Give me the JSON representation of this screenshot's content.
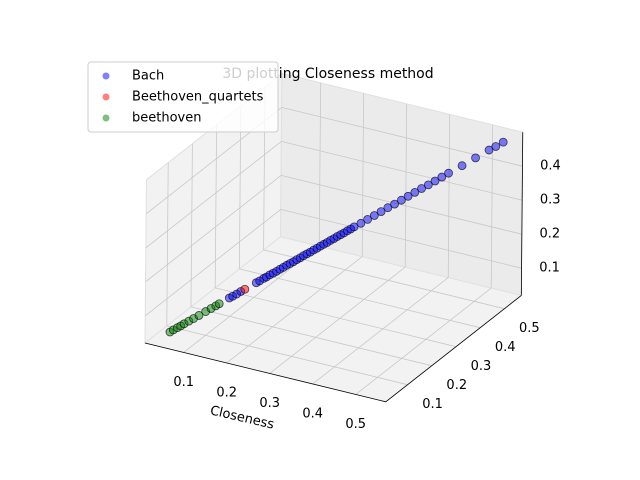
{
  "chart_data": {
    "type": "scatter3d",
    "title": "3D plotting Closeness method",
    "x_label": "Closeness",
    "xlim": [
      0.01,
      0.57
    ],
    "ylim": [
      0.01,
      0.57
    ],
    "zlim": [
      0.02,
      0.5
    ],
    "xticks": [
      0.1,
      0.2,
      0.3,
      0.4,
      0.5
    ],
    "yticks": [
      0.1,
      0.2,
      0.3,
      0.4,
      0.5
    ],
    "zticks": [
      0.1,
      0.2,
      0.3,
      0.4
    ],
    "grid": true,
    "legend": "upper left",
    "series": [
      {
        "name": "Bach",
        "color": "#0000ff",
        "x": [
          0.135,
          0.14,
          0.146,
          0.152,
          0.175,
          0.18,
          0.186,
          0.19,
          0.195,
          0.2,
          0.205,
          0.21,
          0.215,
          0.22,
          0.225,
          0.23,
          0.235,
          0.24,
          0.245,
          0.25,
          0.255,
          0.26,
          0.265,
          0.27,
          0.275,
          0.28,
          0.285,
          0.29,
          0.295,
          0.3,
          0.305,
          0.31,
          0.315,
          0.32,
          0.33,
          0.34,
          0.35,
          0.36,
          0.37,
          0.38,
          0.39,
          0.4,
          0.41,
          0.42,
          0.43,
          0.44,
          0.45,
          0.46,
          0.48,
          0.5,
          0.52,
          0.53,
          0.541
        ],
        "y": [
          0.135,
          0.14,
          0.146,
          0.152,
          0.175,
          0.18,
          0.186,
          0.19,
          0.195,
          0.2,
          0.205,
          0.21,
          0.215,
          0.22,
          0.225,
          0.23,
          0.235,
          0.24,
          0.245,
          0.25,
          0.255,
          0.26,
          0.265,
          0.27,
          0.275,
          0.28,
          0.285,
          0.29,
          0.295,
          0.3,
          0.305,
          0.31,
          0.315,
          0.32,
          0.33,
          0.34,
          0.35,
          0.36,
          0.37,
          0.38,
          0.39,
          0.4,
          0.41,
          0.42,
          0.43,
          0.44,
          0.45,
          0.46,
          0.48,
          0.5,
          0.52,
          0.53,
          0.541
        ],
        "z": [
          0.121,
          0.125,
          0.13,
          0.136,
          0.156,
          0.16,
          0.166,
          0.169,
          0.174,
          0.178,
          0.182,
          0.187,
          0.191,
          0.196,
          0.2,
          0.204,
          0.209,
          0.213,
          0.218,
          0.222,
          0.226,
          0.231,
          0.235,
          0.24,
          0.244,
          0.248,
          0.253,
          0.257,
          0.262,
          0.266,
          0.27,
          0.275,
          0.279,
          0.284,
          0.292,
          0.301,
          0.31,
          0.319,
          0.328,
          0.336,
          0.345,
          0.354,
          0.363,
          0.372,
          0.38,
          0.389,
          0.398,
          0.407,
          0.424,
          0.442,
          0.46,
          0.468,
          0.478
        ]
      },
      {
        "name": "Beethoven_quartets",
        "color": "#ff0000",
        "x": [
          0.158
        ],
        "y": [
          0.158
        ],
        "z": [
          0.141
        ]
      },
      {
        "name": "beethoven",
        "color": "#008000",
        "x": [
          0.047,
          0.052,
          0.058,
          0.063,
          0.068,
          0.075,
          0.082,
          0.09,
          0.1,
          0.108,
          0.115,
          0.12
        ],
        "y": [
          0.047,
          0.052,
          0.058,
          0.063,
          0.068,
          0.075,
          0.082,
          0.09,
          0.1,
          0.108,
          0.115,
          0.12
        ],
        "z": [
          0.043,
          0.048,
          0.053,
          0.057,
          0.062,
          0.068,
          0.074,
          0.081,
          0.09,
          0.097,
          0.103,
          0.108
        ]
      }
    ]
  }
}
